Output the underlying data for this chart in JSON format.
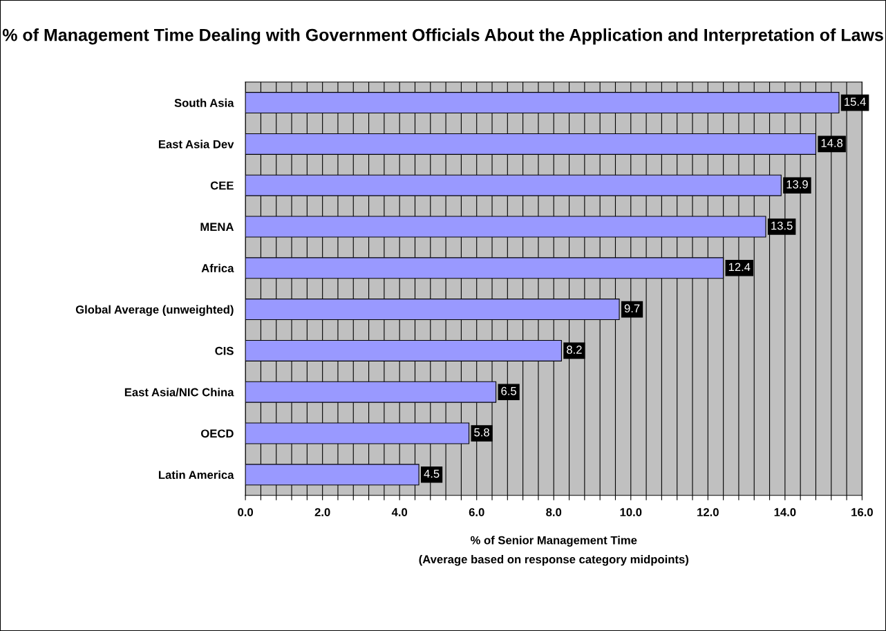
{
  "chart_data": {
    "type": "bar",
    "orientation": "horizontal",
    "title": "% of Management Time Dealing with Government Officials About the Application and Interpretation of Laws",
    "xlabel": "% of Senior Management Time\n(Average based on response category midpoints)",
    "categories": [
      "South Asia",
      "East Asia Dev",
      "CEE",
      "MENA",
      "Africa",
      "Global Average (unweighted)",
      "CIS",
      "East Asia/NIC China",
      "OECD",
      "Latin America"
    ],
    "values": [
      15.4,
      14.8,
      13.9,
      13.5,
      12.4,
      9.7,
      8.2,
      6.5,
      5.8,
      4.5
    ],
    "color": "#9999ff",
    "data_labels": true,
    "xlim": [
      0,
      16
    ],
    "xticks": [
      {
        "value": 0,
        "label": "0.0"
      },
      {
        "value": 0.4,
        "label": null
      },
      {
        "value": 0.8,
        "label": null
      },
      {
        "value": 1.2,
        "label": null
      },
      {
        "value": 1.6,
        "label": null
      },
      {
        "value": 2,
        "label": "2.0"
      },
      {
        "value": 2.4,
        "label": null
      },
      {
        "value": 2.8,
        "label": null
      },
      {
        "value": 3.2,
        "label": null
      },
      {
        "value": 3.6,
        "label": null
      },
      {
        "value": 4,
        "label": "4.0"
      },
      {
        "value": 4.4,
        "label": null
      },
      {
        "value": 4.8,
        "label": null
      },
      {
        "value": 5.2,
        "label": null
      },
      {
        "value": 5.6,
        "label": null
      },
      {
        "value": 6,
        "label": "6.0"
      },
      {
        "value": 6.4,
        "label": null
      },
      {
        "value": 6.8,
        "label": null
      },
      {
        "value": 7.2,
        "label": null
      },
      {
        "value": 7.6,
        "label": null
      },
      {
        "value": 8,
        "label": "8.0"
      },
      {
        "value": 8.4,
        "label": null
      },
      {
        "value": 8.8,
        "label": null
      },
      {
        "value": 9.2,
        "label": null
      },
      {
        "value": 9.6,
        "label": null
      },
      {
        "value": 10,
        "label": "10.0"
      },
      {
        "value": 10.4,
        "label": null
      },
      {
        "value": 10.8,
        "label": null
      },
      {
        "value": 11.2,
        "label": null
      },
      {
        "value": 11.6,
        "label": null
      },
      {
        "value": 12,
        "label": "12.0"
      },
      {
        "value": 12.4,
        "label": null
      },
      {
        "value": 12.8,
        "label": null
      },
      {
        "value": 13.2,
        "label": null
      },
      {
        "value": 13.6,
        "label": null
      },
      {
        "value": 14,
        "label": "14.0"
      },
      {
        "value": 14.4,
        "label": null
      },
      {
        "value": 14.8,
        "label": null
      },
      {
        "value": 15.2,
        "label": null
      },
      {
        "value": 15.6,
        "label": null
      },
      {
        "value": 16,
        "label": "16.0"
      }
    ],
    "grid": "x",
    "legend": false
  }
}
